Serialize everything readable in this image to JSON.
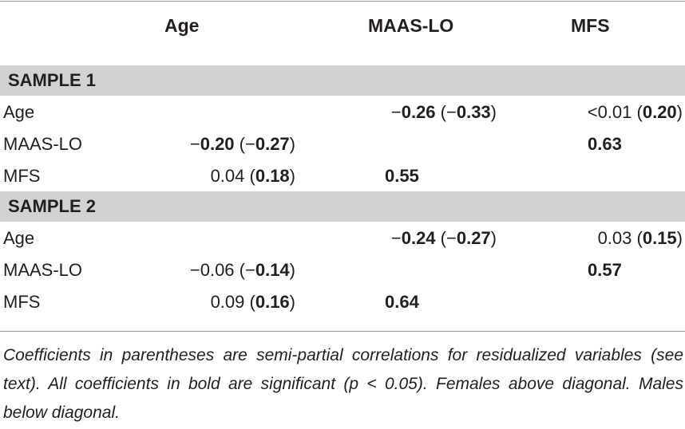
{
  "table": {
    "headers": [
      "Age",
      "MAAS-LO",
      "MFS"
    ],
    "sections": [
      {
        "title": "SAMPLE 1",
        "rows": [
          {
            "label": "Age",
            "age": {
              "pre": "",
              "val": "",
              "open": "",
              "par": "",
              "close": ""
            },
            "maas": {
              "pre": "−",
              "val": "0.26",
              "open": " (−",
              "par": "0.33",
              "close": ")"
            },
            "mfs": {
              "pre": "<0.01",
              "val": "",
              "open": " (",
              "par": "0.20",
              "close": ")"
            }
          },
          {
            "label": "MAAS-LO",
            "age": {
              "pre": "−",
              "val": "0.20",
              "open": " (−",
              "par": "0.27",
              "close": ")"
            },
            "maas": {
              "pre": "",
              "val": "",
              "open": "",
              "par": "",
              "close": ""
            },
            "mfs": {
              "val": "0.63"
            }
          },
          {
            "label": "MFS",
            "age": {
              "pre": "0.04",
              "val": "",
              "open": " (",
              "par": "0.18",
              "close": ")"
            },
            "maas": {
              "val": "0.55"
            },
            "mfs": {
              "val": ""
            }
          }
        ]
      },
      {
        "title": "SAMPLE 2",
        "rows": [
          {
            "label": "Age",
            "age": {
              "pre": "",
              "val": "",
              "open": "",
              "par": "",
              "close": ""
            },
            "maas": {
              "pre": "−",
              "val": "0.24",
              "open": " (−",
              "par": "0.27",
              "close": ")"
            },
            "mfs": {
              "pre": "0.03",
              "val": "",
              "open": " (",
              "par": "0.15",
              "close": ")"
            }
          },
          {
            "label": "MAAS-LO",
            "age": {
              "pre": "−0.06",
              "val": "",
              "open": " (−",
              "par": "0.14",
              "close": ")"
            },
            "maas": {
              "pre": "",
              "val": "",
              "open": "",
              "par": "",
              "close": ""
            },
            "mfs": {
              "val": "0.57"
            }
          },
          {
            "label": "MFS",
            "age": {
              "pre": "0.09",
              "val": "",
              "open": " (",
              "par": "0.16",
              "close": ")"
            },
            "maas": {
              "val": "0.64"
            },
            "mfs": {
              "val": ""
            }
          }
        ]
      }
    ]
  },
  "footnote": "Coefficients in parentheses are semi-partial correlations for residualized variables (see text). All coefficients in bold are significant (p < 0.05). Females above diagonal. Males below diagonal."
}
